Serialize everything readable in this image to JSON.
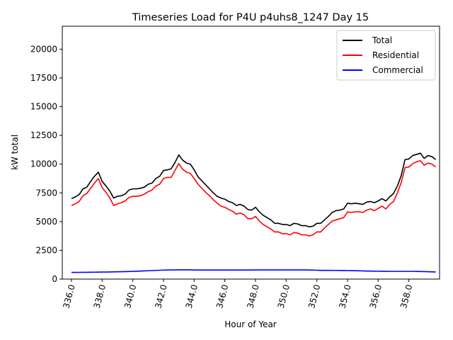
{
  "chart_data": {
    "type": "line",
    "title": "Timeseries Load for P4U p4uhs8_1247  Day 15",
    "xlabel": "Hour of Year",
    "ylabel": "kW total",
    "xlim": [
      335.4,
      360.0
    ],
    "ylim": [
      0,
      22000
    ],
    "xticks": [
      336,
      338,
      340,
      342,
      344,
      346,
      348,
      350,
      352,
      354,
      356,
      358
    ],
    "xtick_labels": [
      "336.0",
      "338.0",
      "340.0",
      "342.0",
      "344.0",
      "346.0",
      "348.0",
      "350.0",
      "352.0",
      "354.0",
      "356.0",
      "358.0"
    ],
    "yticks": [
      0,
      2500,
      5000,
      7500,
      10000,
      12500,
      15000,
      17500,
      20000
    ],
    "ytick_labels": [
      "0",
      "2500",
      "5000",
      "7500",
      "10000",
      "12500",
      "15000",
      "17500",
      "20000"
    ],
    "grid": false,
    "legend_position": "top-right",
    "x": [
      336.0,
      336.25,
      336.5,
      336.75,
      337.0,
      337.25,
      337.5,
      337.75,
      338.0,
      338.25,
      338.5,
      338.75,
      339.0,
      339.25,
      339.5,
      339.75,
      340.0,
      340.25,
      340.5,
      340.75,
      341.0,
      341.25,
      341.5,
      341.75,
      342.0,
      342.25,
      342.5,
      342.75,
      343.0,
      343.25,
      343.5,
      343.75,
      344.0,
      344.25,
      344.5,
      344.75,
      345.0,
      345.25,
      345.5,
      345.75,
      346.0,
      346.25,
      346.5,
      346.75,
      347.0,
      347.25,
      347.5,
      347.75,
      348.0,
      348.25,
      348.5,
      348.75,
      349.0,
      349.25,
      349.5,
      349.75,
      350.0,
      350.25,
      350.5,
      350.75,
      351.0,
      351.25,
      351.5,
      351.75,
      352.0,
      352.25,
      352.5,
      352.75,
      353.0,
      353.25,
      353.5,
      353.75,
      354.0,
      354.25,
      354.5,
      354.75,
      355.0,
      355.25,
      355.5,
      355.75,
      356.0,
      356.25,
      356.5,
      356.75,
      357.0,
      357.25,
      357.5,
      357.75,
      358.0,
      358.25,
      358.5,
      358.75,
      359.0,
      359.25,
      359.5,
      359.75
    ],
    "series": [
      {
        "name": "Total",
        "color": "#000000",
        "values": [
          7000,
          7150,
          7350,
          7850,
          8000,
          8500,
          8950,
          9300,
          8500,
          8100,
          7650,
          7050,
          7200,
          7250,
          7400,
          7750,
          7850,
          7850,
          7900,
          8000,
          8250,
          8350,
          8750,
          8950,
          9450,
          9500,
          9600,
          10150,
          10800,
          10350,
          10100,
          10000,
          9500,
          8900,
          8550,
          8200,
          7850,
          7500,
          7200,
          7050,
          6950,
          6750,
          6650,
          6400,
          6500,
          6350,
          6050,
          6000,
          6250,
          5850,
          5550,
          5350,
          5150,
          4850,
          4850,
          4750,
          4750,
          4650,
          4850,
          4800,
          4650,
          4650,
          4550,
          4600,
          4850,
          4850,
          5150,
          5450,
          5800,
          5950,
          6000,
          6100,
          6600,
          6550,
          6600,
          6550,
          6500,
          6700,
          6750,
          6650,
          6800,
          7000,
          6800,
          7150,
          7450,
          8100,
          9000,
          10400,
          10450,
          10750,
          10850,
          10950,
          10500,
          10750,
          10650,
          10400
        ]
      },
      {
        "name": "Residential",
        "color": "#ff0000",
        "values": [
          6400,
          6550,
          6750,
          7250,
          7450,
          7900,
          8350,
          8750,
          7950,
          7550,
          7050,
          6400,
          6550,
          6650,
          6800,
          7100,
          7200,
          7200,
          7250,
          7400,
          7600,
          7750,
          8100,
          8250,
          8750,
          8850,
          8850,
          9450,
          10050,
          9550,
          9300,
          9200,
          8750,
          8250,
          7900,
          7550,
          7250,
          6900,
          6600,
          6350,
          6250,
          6050,
          5900,
          5650,
          5750,
          5600,
          5250,
          5250,
          5450,
          5050,
          4750,
          4550,
          4350,
          4100,
          4100,
          3950,
          3950,
          3850,
          4050,
          4000,
          3850,
          3850,
          3750,
          3850,
          4100,
          4100,
          4450,
          4750,
          5050,
          5150,
          5250,
          5350,
          5850,
          5800,
          5850,
          5850,
          5800,
          6000,
          6100,
          5950,
          6150,
          6350,
          6100,
          6500,
          6750,
          7500,
          8400,
          9700,
          9750,
          10050,
          10200,
          10300,
          9900,
          10100,
          10000,
          9750
        ]
      },
      {
        "name": "Commercial",
        "color": "#0000ff",
        "values": [
          580,
          580,
          585,
          590,
          590,
          595,
          600,
          605,
          610,
          615,
          620,
          630,
          635,
          640,
          650,
          660,
          670,
          680,
          695,
          710,
          725,
          740,
          755,
          770,
          785,
          790,
          795,
          800,
          805,
          805,
          805,
          805,
          790,
          790,
          790,
          790,
          790,
          790,
          790,
          790,
          790,
          790,
          790,
          790,
          790,
          790,
          790,
          790,
          795,
          795,
          795,
          800,
          800,
          800,
          800,
          800,
          800,
          800,
          800,
          800,
          800,
          795,
          790,
          780,
          770,
          760,
          760,
          760,
          755,
          755,
          750,
          745,
          740,
          735,
          730,
          720,
          710,
          700,
          695,
          690,
          685,
          680,
          675,
          670,
          670,
          670,
          670,
          670,
          670,
          670,
          665,
          660,
          650,
          640,
          630,
          620
        ]
      }
    ]
  }
}
